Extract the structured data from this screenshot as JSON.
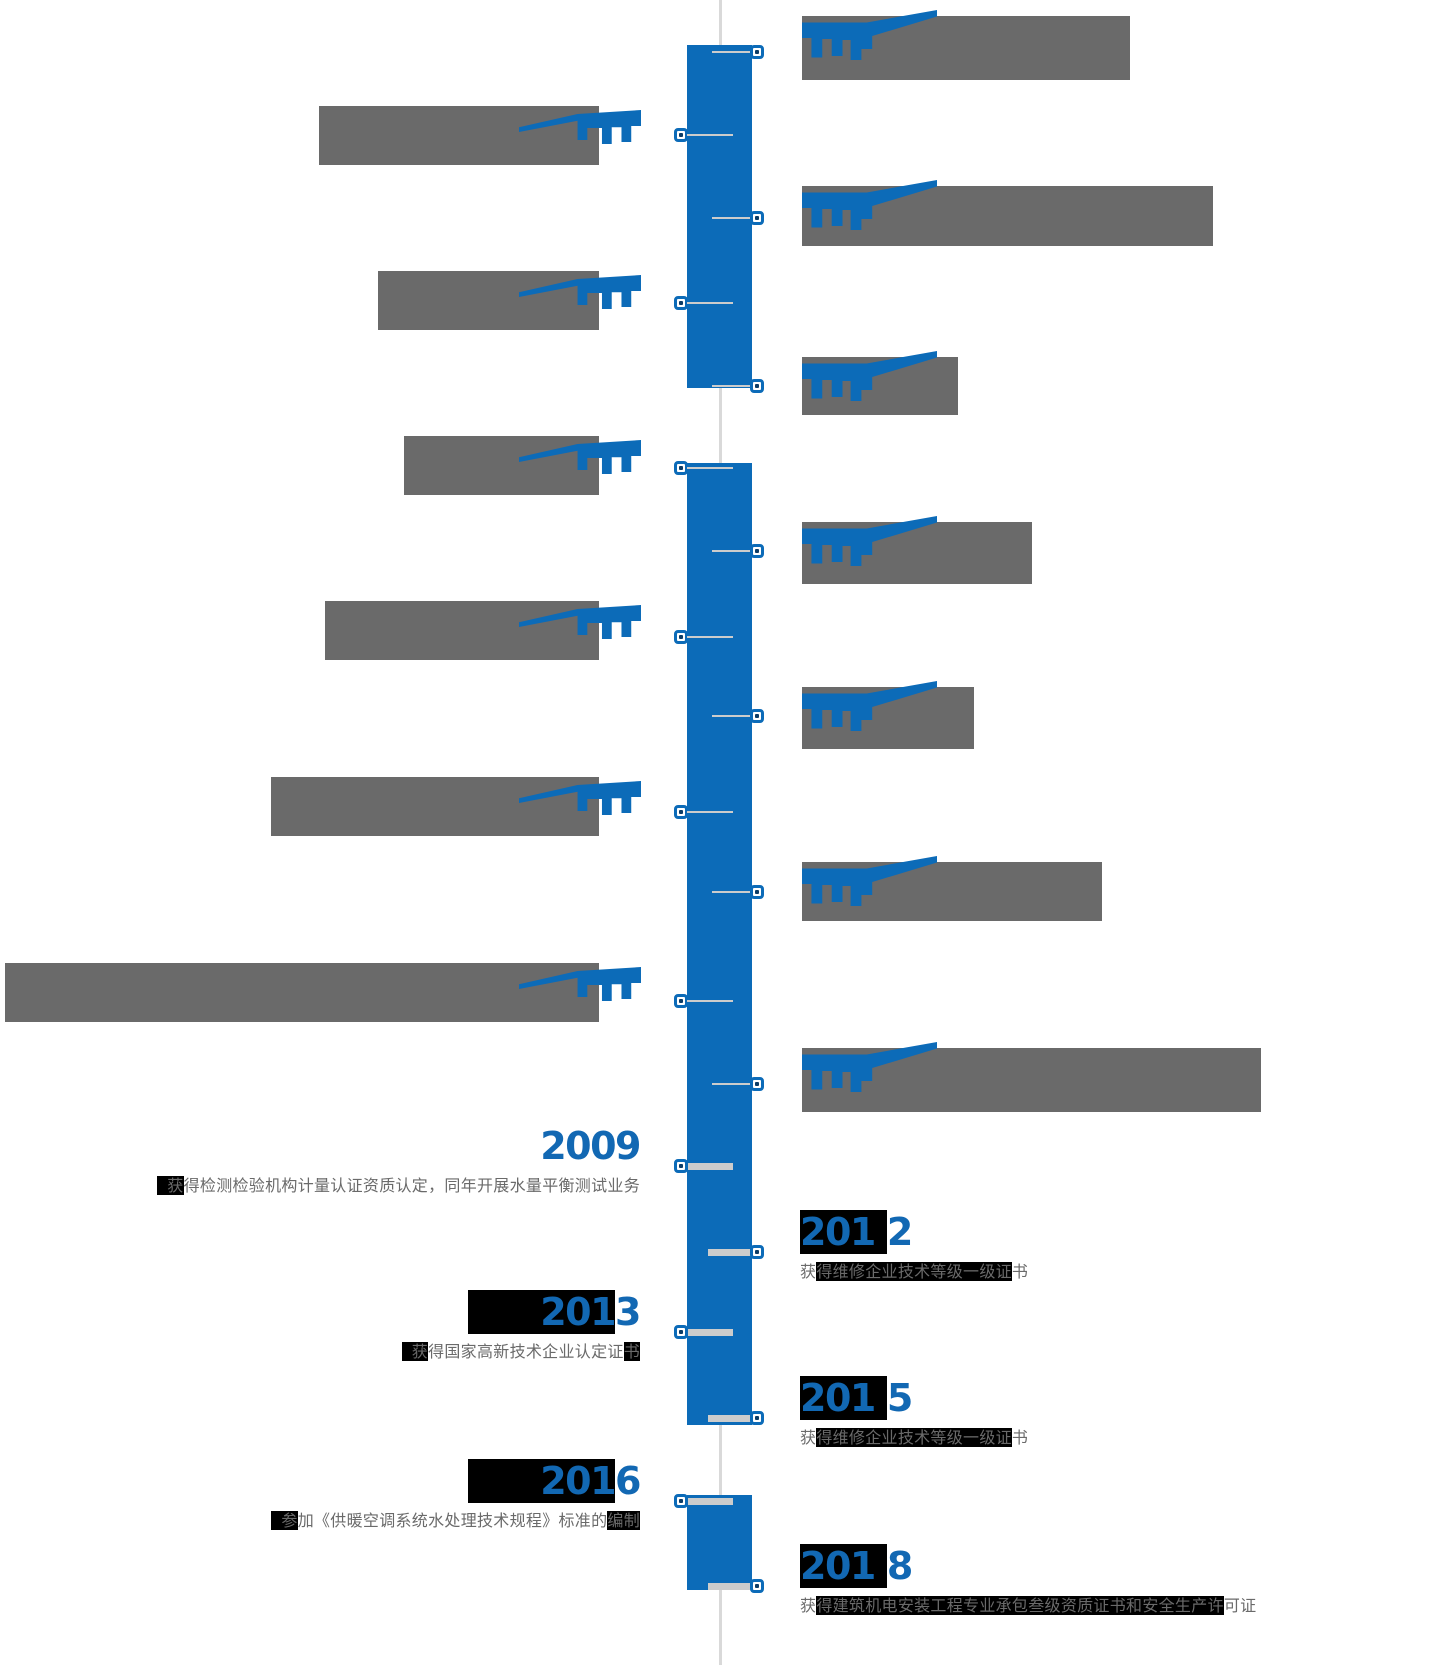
{
  "page": {
    "kind": "company-history-timeline",
    "background": "#ffffff"
  },
  "colors": {
    "accent_blue": "#0c6bb8",
    "year_blue": "#1268b3",
    "cover_gray": "#6a6a6a",
    "axis_line_gray": "#d9d9d9",
    "tick_gray": "#cccccc",
    "highlight_black": "#000000"
  },
  "items": [
    {
      "side": "right",
      "state": "covered"
    },
    {
      "side": "left",
      "state": "covered"
    },
    {
      "side": "right",
      "state": "covered"
    },
    {
      "side": "left",
      "state": "covered"
    },
    {
      "side": "right",
      "state": "covered"
    },
    {
      "side": "left",
      "state": "covered"
    },
    {
      "side": "right",
      "state": "covered"
    },
    {
      "side": "left",
      "state": "covered"
    },
    {
      "side": "right",
      "state": "covered"
    },
    {
      "side": "left",
      "state": "covered"
    },
    {
      "side": "right",
      "state": "covered"
    },
    {
      "side": "left",
      "state": "covered"
    },
    {
      "side": "right",
      "state": "covered"
    },
    {
      "side": "left",
      "state": "revealed",
      "year_parts": [
        {
          "t": "2009",
          "hl": false
        }
      ],
      "desc_parts": [
        {
          "t": "获",
          "hl": true
        },
        {
          "t": "得检测检验机构计量认证资质认定，同年开展水量平衡测试业务",
          "hl": false
        }
      ]
    },
    {
      "side": "right",
      "state": "revealed",
      "year_parts": [
        {
          "t": "201",
          "hl": true
        },
        {
          "t": "2",
          "hl": false
        }
      ],
      "desc_parts": [
        {
          "t": "获",
          "hl": false
        },
        {
          "t": "得维修企业技术等级一级证",
          "hl": true
        },
        {
          "t": "书",
          "hl": false
        }
      ]
    },
    {
      "side": "left",
      "state": "revealed",
      "year_parts": [
        {
          "t": "201",
          "hl": true
        },
        {
          "t": "3",
          "hl": false
        }
      ],
      "desc_parts": [
        {
          "t": "获",
          "hl": true
        },
        {
          "t": "得国家高新技术企业认定证",
          "hl": false
        },
        {
          "t": "书",
          "hl": true
        }
      ]
    },
    {
      "side": "right",
      "state": "revealed",
      "year_parts": [
        {
          "t": "201",
          "hl": true
        },
        {
          "t": "5",
          "hl": false
        }
      ],
      "desc_parts": [
        {
          "t": "获",
          "hl": false
        },
        {
          "t": "得维修企业技术等级一级证",
          "hl": true
        },
        {
          "t": "书",
          "hl": false
        }
      ]
    },
    {
      "side": "left",
      "state": "revealed",
      "year_parts": [
        {
          "t": "201",
          "hl": true
        },
        {
          "t": "6",
          "hl": false
        }
      ],
      "desc_parts": [
        {
          "t": "参",
          "hl": true
        },
        {
          "t": "加《供暖空调系统水处理技术规程》标准的",
          "hl": false
        },
        {
          "t": "编制",
          "hl": true
        }
      ]
    },
    {
      "side": "right",
      "state": "revealed",
      "year_parts": [
        {
          "t": "201",
          "hl": true
        },
        {
          "t": "8",
          "hl": false
        }
      ],
      "desc_parts": [
        {
          "t": "获",
          "hl": false
        },
        {
          "t": "得建筑机电安装工程专业承包叁级资质证书和安全生产许",
          "hl": true
        },
        {
          "t": "可证",
          "hl": false
        }
      ]
    }
  ]
}
